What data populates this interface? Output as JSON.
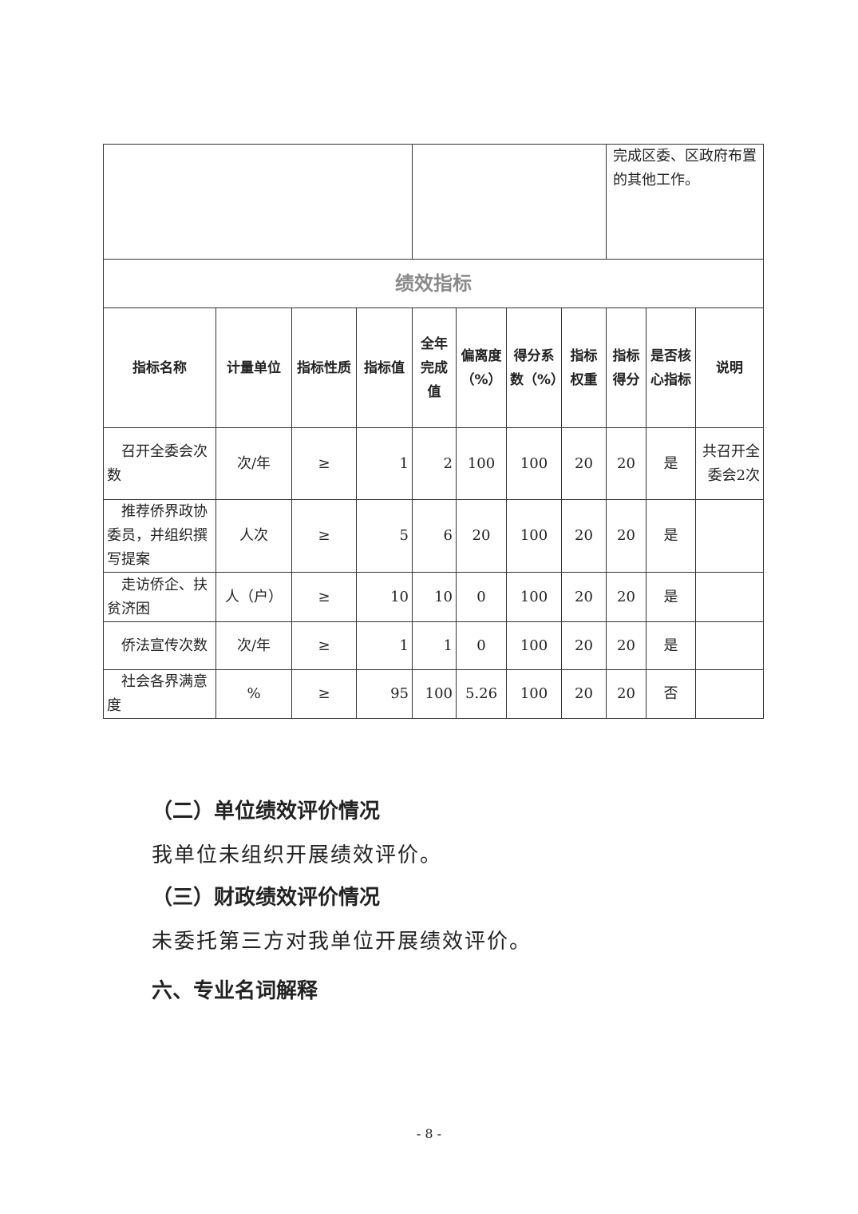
{
  "top_row": {
    "col1": "",
    "col2": "",
    "col3": "完成区委、区政府布置的其他工作。"
  },
  "section_title": "绩效指标",
  "headers": [
    "指标名称",
    "计量单位",
    "指标性质",
    "指标值",
    "全年完成值",
    "偏离度（%）",
    "得分系数（%）",
    "指标权重",
    "指标得分",
    "是否核心指标",
    "说明"
  ],
  "rows": [
    [
      "召开全委会次数",
      "次/年",
      "≥",
      "1",
      "2",
      "100",
      "100",
      "20",
      "20",
      "是",
      "共召开全委会2次"
    ],
    [
      "推荐侨界政协委员，并组织撰写提案",
      "人次",
      "≥",
      "5",
      "6",
      "20",
      "100",
      "20",
      "20",
      "是",
      ""
    ],
    [
      "走访侨企、扶贫济困",
      "人（户）",
      "≥",
      "10",
      "10",
      "0",
      "100",
      "20",
      "20",
      "是",
      ""
    ],
    [
      "侨法宣传次数",
      "次/年",
      "≥",
      "1",
      "1",
      "0",
      "100",
      "20",
      "20",
      "是",
      ""
    ],
    [
      "社会各界满意度",
      "%",
      "≥",
      "95",
      "100",
      "5.26",
      "100",
      "20",
      "20",
      "否",
      ""
    ]
  ],
  "body": {
    "h2": "（二）单位绩效评价情况",
    "p2": "我单位未组织开展绩效评价。",
    "h3": "（三）财政绩效评价情况",
    "p3": "未委托第三方对我单位开展绩效评价。",
    "h6": "六、专业名词解释"
  },
  "page_number": "- 8 -"
}
